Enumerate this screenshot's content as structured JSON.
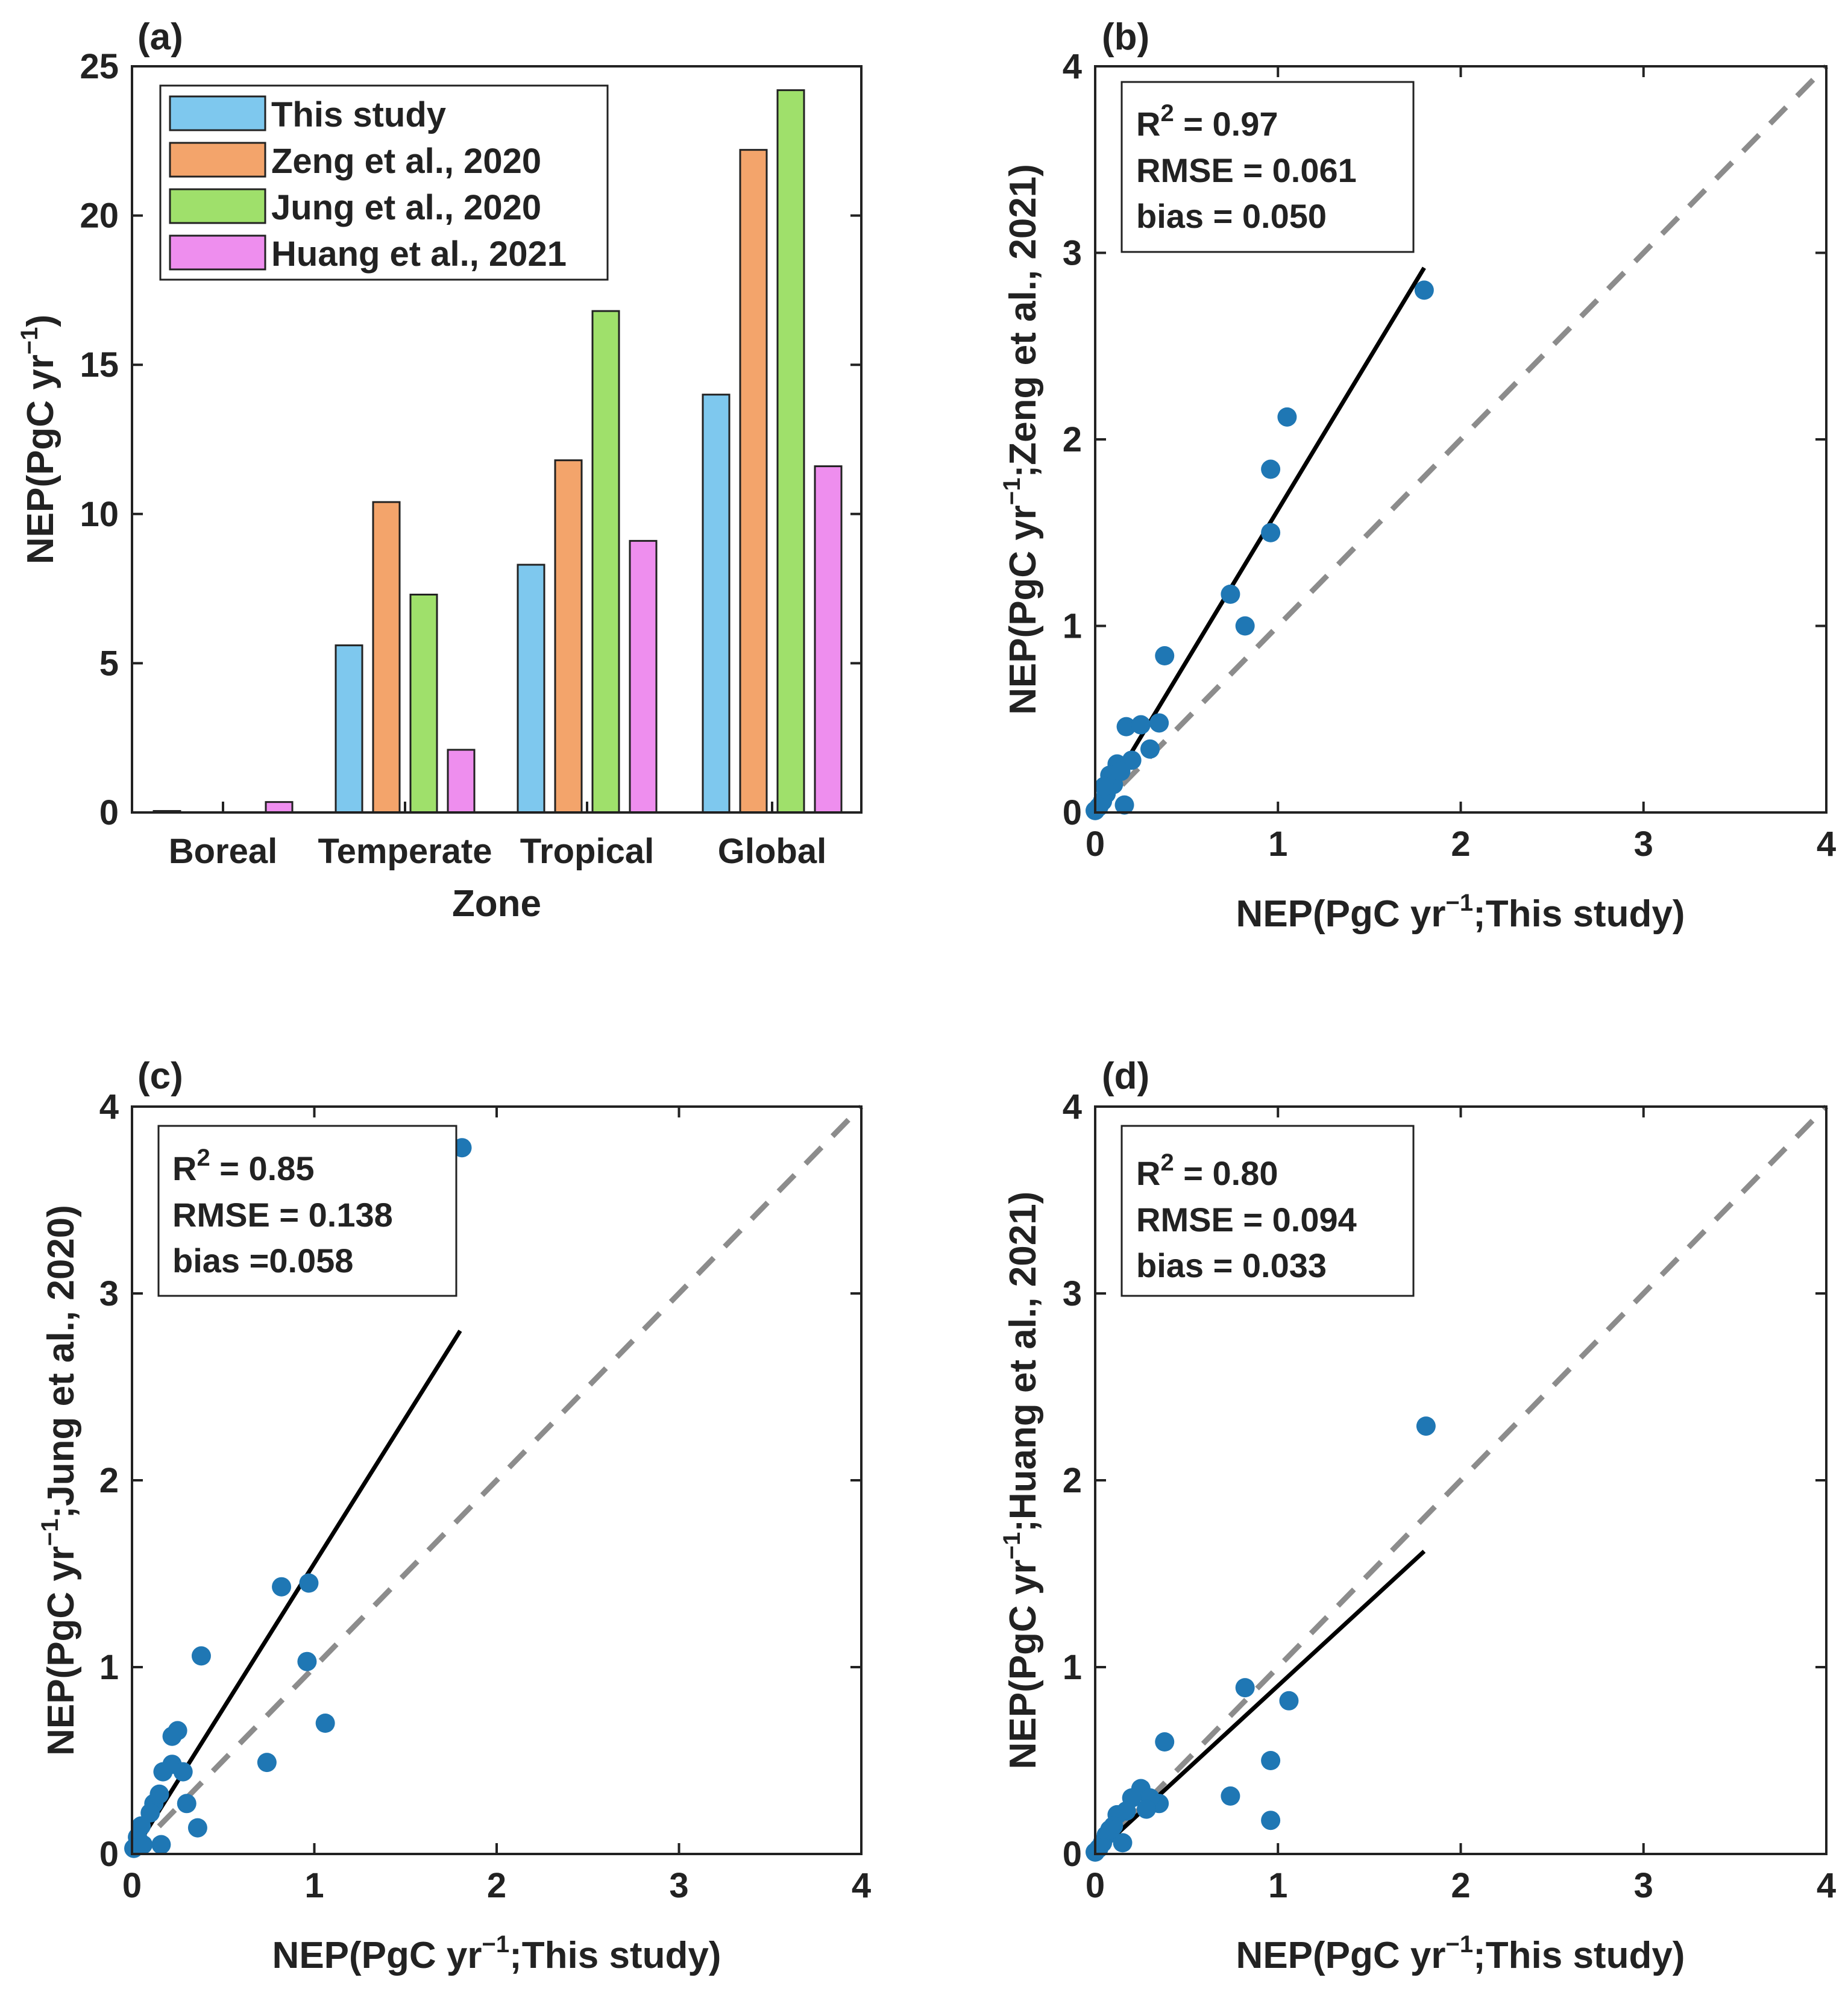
{
  "colors": {
    "this_study": "#7ec8ee",
    "zeng": "#f3a46b",
    "jung": "#9fe06b",
    "huang": "#ee8eee",
    "points": "#1f77b4",
    "fit_line": "#000000",
    "one_to_one": "#8c8c8c",
    "axis": "#222222"
  },
  "chart_data": [
    {
      "panel": "(a)",
      "type": "bar",
      "categories": [
        "Boreal",
        "Temperate",
        "Tropical",
        "Global"
      ],
      "series": [
        {
          "name": "This study",
          "values": [
            0.05,
            5.6,
            8.3,
            14.0
          ]
        },
        {
          "name": "Zeng et al., 2020",
          "values": [
            0.0,
            10.4,
            11.8,
            22.2
          ]
        },
        {
          "name": "Jung et al., 2020",
          "values": [
            0.0,
            7.3,
            16.8,
            24.2
          ]
        },
        {
          "name": "Huang et al., 2021",
          "values": [
            0.35,
            2.1,
            9.1,
            11.6
          ]
        }
      ],
      "xlabel": "Zone",
      "ylabel": "NEP(PgC yr",
      "ylabel_sup": "−1",
      "ylabel_tail": ")",
      "ylim": [
        0,
        25
      ],
      "yticks": [
        "0",
        "5",
        "10",
        "15",
        "20",
        "25"
      ],
      "legend_position": "top-left"
    },
    {
      "panel": "(b)",
      "type": "scatter",
      "xlabel": "NEP(PgC yr",
      "xlabel_sup": "−1",
      "xlabel_tail": ";This study)",
      "ylabel": "NEP(PgC yr",
      "ylabel_sup": "−1",
      "ylabel_tail": ";Zeng et al., 2021)",
      "xlim": [
        0,
        4
      ],
      "ylim": [
        0,
        4
      ],
      "ticks": [
        "0",
        "1",
        "2",
        "3",
        "4"
      ],
      "stats": {
        "r2_prefix": "R",
        "r2_sup": "2",
        "r2_value": " = 0.97",
        "rmse": "RMSE = 0.061",
        "bias": "bias = 0.050"
      },
      "fit": [
        [
          0,
          0
        ],
        [
          1.8,
          2.92
        ]
      ],
      "points": [
        [
          1.8,
          2.8
        ],
        [
          1.05,
          2.12
        ],
        [
          0.96,
          1.84
        ],
        [
          0.96,
          1.5
        ],
        [
          0.74,
          1.17
        ],
        [
          0.82,
          1.0
        ],
        [
          0.38,
          0.84
        ],
        [
          0.17,
          0.46
        ],
        [
          0.25,
          0.47
        ],
        [
          0.35,
          0.48
        ],
        [
          0.3,
          0.34
        ],
        [
          0.16,
          0.04
        ],
        [
          0.12,
          0.26
        ],
        [
          0.2,
          0.28
        ],
        [
          0.08,
          0.2
        ],
        [
          0.1,
          0.15
        ],
        [
          0.06,
          0.1
        ],
        [
          0.04,
          0.06
        ],
        [
          0.02,
          0.03
        ],
        [
          0.0,
          0.01
        ],
        [
          0.14,
          0.22
        ],
        [
          0.05,
          0.14
        ]
      ]
    },
    {
      "panel": "(c)",
      "type": "scatter",
      "xlabel": "NEP(PgC yr",
      "xlabel_sup": "−1",
      "xlabel_tail": ";This study)",
      "ylabel": "NEP(PgC yr",
      "ylabel_sup": "−1",
      "ylabel_tail": ";Jung et al., 2020)",
      "xlim": [
        0,
        4
      ],
      "ylim": [
        0,
        4
      ],
      "ticks": [
        "0",
        "1",
        "2",
        "3",
        "4"
      ],
      "stats": {
        "r2_prefix": "R",
        "r2_sup": "2",
        "r2_value": " = 0.85",
        "rmse": "RMSE = 0.138",
        "bias": "bias =0.058"
      },
      "fit": [
        [
          0,
          0
        ],
        [
          1.8,
          2.8
        ]
      ],
      "points": [
        [
          1.81,
          3.78
        ],
        [
          0.82,
          1.43
        ],
        [
          0.97,
          1.45
        ],
        [
          0.38,
          1.06
        ],
        [
          0.96,
          1.03
        ],
        [
          1.06,
          0.7
        ],
        [
          0.74,
          0.49
        ],
        [
          0.36,
          0.14
        ],
        [
          0.25,
          0.66
        ],
        [
          0.22,
          0.63
        ],
        [
          0.22,
          0.48
        ],
        [
          0.17,
          0.44
        ],
        [
          0.28,
          0.44
        ],
        [
          0.3,
          0.27
        ],
        [
          0.12,
          0.27
        ],
        [
          0.16,
          0.05
        ],
        [
          0.06,
          0.05
        ],
        [
          0.1,
          0.22
        ],
        [
          0.05,
          0.15
        ],
        [
          0.03,
          0.09
        ],
        [
          0.01,
          0.03
        ],
        [
          0.15,
          0.32
        ]
      ]
    },
    {
      "panel": "(d)",
      "type": "scatter",
      "xlabel": "NEP(PgC yr",
      "xlabel_sup": "−1",
      "xlabel_tail": ";This study)",
      "ylabel": "NEP(PgC yr",
      "ylabel_sup": "−1",
      "ylabel_tail": ";Huang et al., 2021)",
      "xlim": [
        0,
        4
      ],
      "ylim": [
        0,
        4
      ],
      "ticks": [
        "0",
        "1",
        "2",
        "3",
        "4"
      ],
      "stats": {
        "r2_prefix": "R",
        "r2_sup": "2",
        "r2_value": " = 0.80",
        "rmse": "RMSE = 0.094",
        "bias": "bias = 0.033"
      },
      "fit": [
        [
          0,
          0
        ],
        [
          1.8,
          1.62
        ]
      ],
      "points": [
        [
          1.81,
          2.29
        ],
        [
          0.82,
          0.89
        ],
        [
          1.06,
          0.82
        ],
        [
          0.38,
          0.6
        ],
        [
          0.96,
          0.5
        ],
        [
          0.74,
          0.31
        ],
        [
          0.96,
          0.18
        ],
        [
          0.35,
          0.27
        ],
        [
          0.25,
          0.35
        ],
        [
          0.3,
          0.3
        ],
        [
          0.2,
          0.3
        ],
        [
          0.28,
          0.24
        ],
        [
          0.17,
          0.23
        ],
        [
          0.12,
          0.21
        ],
        [
          0.15,
          0.06
        ],
        [
          0.1,
          0.15
        ],
        [
          0.06,
          0.1
        ],
        [
          0.04,
          0.06
        ],
        [
          0.02,
          0.03
        ],
        [
          0.0,
          0.01
        ],
        [
          0.08,
          0.13
        ]
      ]
    }
  ]
}
